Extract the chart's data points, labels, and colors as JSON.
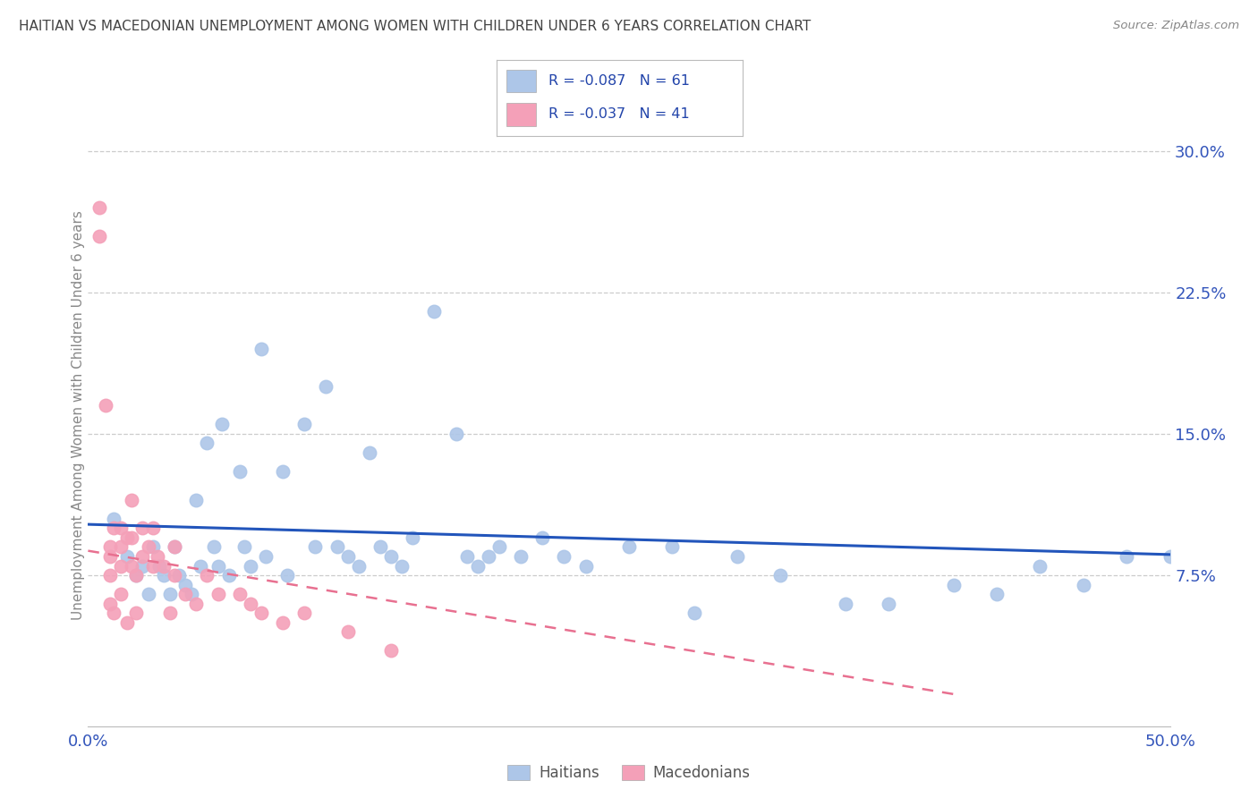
{
  "title": "HAITIAN VS MACEDONIAN UNEMPLOYMENT AMONG WOMEN WITH CHILDREN UNDER 6 YEARS CORRELATION CHART",
  "source": "Source: ZipAtlas.com",
  "ylabel": "Unemployment Among Women with Children Under 6 years",
  "xlim": [
    0.0,
    0.5
  ],
  "ylim": [
    -0.005,
    0.325
  ],
  "xticks": [
    0.0,
    0.1,
    0.2,
    0.3,
    0.4,
    0.5
  ],
  "xticklabels": [
    "0.0%",
    "",
    "",
    "",
    "",
    "50.0%"
  ],
  "yticks_right": [
    0.075,
    0.15,
    0.225,
    0.3
  ],
  "yticklabels_right": [
    "7.5%",
    "15.0%",
    "22.5%",
    "30.0%"
  ],
  "haitian_R": "-0.087",
  "haitian_N": "61",
  "macedonian_R": "-0.037",
  "macedonian_N": "41",
  "haitian_color": "#adc6e8",
  "macedonian_color": "#f4a0b8",
  "haitian_line_color": "#2255bb",
  "macedonian_line_color": "#e87090",
  "background_color": "#ffffff",
  "grid_color": "#cccccc",
  "title_color": "#444444",
  "legend_text_color": "#2244aa",
  "haitian_x": [
    0.012,
    0.018,
    0.022,
    0.025,
    0.028,
    0.03,
    0.033,
    0.035,
    0.038,
    0.04,
    0.042,
    0.045,
    0.048,
    0.05,
    0.052,
    0.055,
    0.058,
    0.06,
    0.062,
    0.065,
    0.07,
    0.072,
    0.075,
    0.08,
    0.082,
    0.09,
    0.092,
    0.1,
    0.105,
    0.11,
    0.115,
    0.12,
    0.125,
    0.13,
    0.135,
    0.14,
    0.145,
    0.15,
    0.16,
    0.17,
    0.175,
    0.18,
    0.185,
    0.19,
    0.2,
    0.21,
    0.22,
    0.23,
    0.25,
    0.27,
    0.28,
    0.3,
    0.32,
    0.35,
    0.37,
    0.4,
    0.42,
    0.44,
    0.46,
    0.48,
    0.5
  ],
  "haitian_y": [
    0.105,
    0.085,
    0.075,
    0.08,
    0.065,
    0.09,
    0.08,
    0.075,
    0.065,
    0.09,
    0.075,
    0.07,
    0.065,
    0.115,
    0.08,
    0.145,
    0.09,
    0.08,
    0.155,
    0.075,
    0.13,
    0.09,
    0.08,
    0.195,
    0.085,
    0.13,
    0.075,
    0.155,
    0.09,
    0.175,
    0.09,
    0.085,
    0.08,
    0.14,
    0.09,
    0.085,
    0.08,
    0.095,
    0.215,
    0.15,
    0.085,
    0.08,
    0.085,
    0.09,
    0.085,
    0.095,
    0.085,
    0.08,
    0.09,
    0.09,
    0.055,
    0.085,
    0.075,
    0.06,
    0.06,
    0.07,
    0.065,
    0.08,
    0.07,
    0.085,
    0.085
  ],
  "macedonian_x": [
    0.005,
    0.005,
    0.008,
    0.01,
    0.01,
    0.01,
    0.01,
    0.012,
    0.012,
    0.015,
    0.015,
    0.015,
    0.015,
    0.018,
    0.018,
    0.02,
    0.02,
    0.02,
    0.022,
    0.022,
    0.025,
    0.025,
    0.028,
    0.03,
    0.03,
    0.032,
    0.035,
    0.038,
    0.04,
    0.04,
    0.045,
    0.05,
    0.055,
    0.06,
    0.07,
    0.075,
    0.08,
    0.09,
    0.1,
    0.12,
    0.14
  ],
  "macedonian_y": [
    0.27,
    0.255,
    0.165,
    0.09,
    0.085,
    0.075,
    0.06,
    0.1,
    0.055,
    0.1,
    0.09,
    0.08,
    0.065,
    0.095,
    0.05,
    0.115,
    0.095,
    0.08,
    0.075,
    0.055,
    0.1,
    0.085,
    0.09,
    0.1,
    0.08,
    0.085,
    0.08,
    0.055,
    0.09,
    0.075,
    0.065,
    0.06,
    0.075,
    0.065,
    0.065,
    0.06,
    0.055,
    0.05,
    0.055,
    0.045,
    0.035
  ],
  "haitian_trend_x0": 0.0,
  "haitian_trend_x1": 0.5,
  "haitian_trend_y0": 0.102,
  "haitian_trend_y1": 0.086,
  "macedonian_trend_x0": 0.0,
  "macedonian_trend_x1": 0.4,
  "macedonian_trend_y0": 0.088,
  "macedonian_trend_y1": 0.012
}
